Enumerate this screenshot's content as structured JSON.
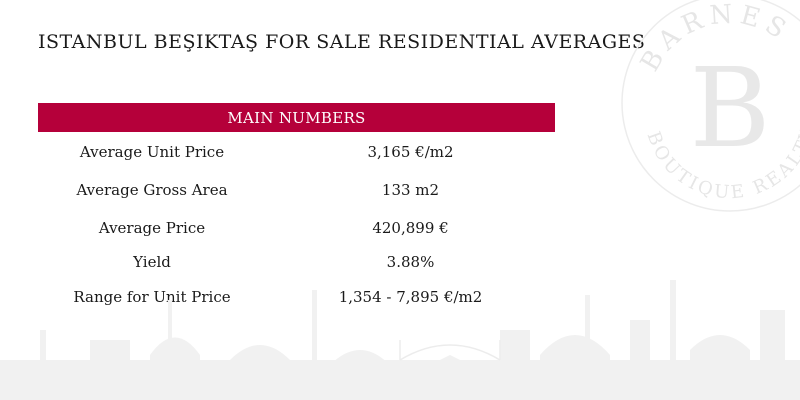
{
  "title": "ISTANBUL BEŞIKTAŞ FOR SALE RESIDENTIAL AVERAGES",
  "section_header": "MAIN NUMBERS",
  "rows": [
    {
      "label": "Average Unit Price",
      "value": "3,165 €/m2"
    },
    {
      "label": "Average Gross Area",
      "value": "133 m2"
    },
    {
      "label": "Average Price",
      "value": "420,899 €"
    },
    {
      "label": "Yield",
      "value": "3.88%"
    },
    {
      "label": "Range for Unit Price",
      "value": "1,354 - 7,895 €/m2"
    }
  ],
  "watermark": {
    "top_text": "BARNES",
    "letter": "B",
    "bottom_text": "BOUTIQUE REALTY"
  },
  "colors": {
    "accent": "#b5003a",
    "text": "#1a1a1a",
    "watermark": "#ececec"
  }
}
